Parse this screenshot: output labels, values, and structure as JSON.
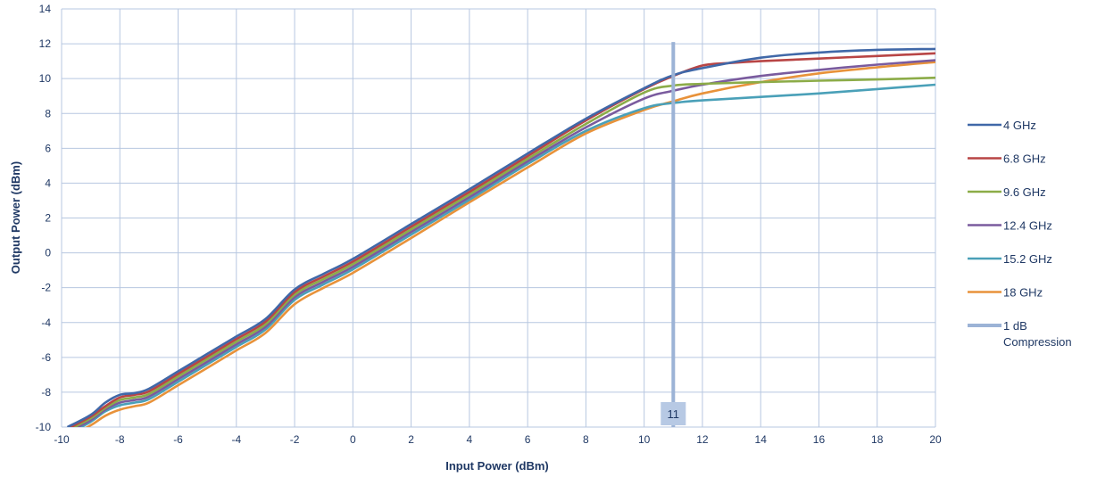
{
  "chart_data": {
    "type": "line",
    "xlabel": "Input Power (dBm)",
    "ylabel": "Output Power (dBm)",
    "xlim": [
      -10,
      20
    ],
    "ylim": [
      -10,
      14
    ],
    "xticks": [
      -10,
      -8,
      -6,
      -4,
      -2,
      0,
      2,
      4,
      6,
      8,
      10,
      12,
      14,
      16,
      18,
      20
    ],
    "yticks": [
      -10,
      -8,
      -6,
      -4,
      -2,
      0,
      2,
      4,
      6,
      8,
      10,
      12,
      14
    ],
    "grid": true,
    "legend_position": "right",
    "series": [
      {
        "name": "4 GHz",
        "color": "#4068a8",
        "x": [
          -9.8,
          -9,
          -8.5,
          -8,
          -7.5,
          -7,
          -6,
          -5,
          -4,
          -3,
          -2,
          -1,
          0,
          2,
          4,
          6,
          8,
          10,
          11,
          12,
          14,
          16,
          18,
          20
        ],
        "y": [
          -10,
          -9.3,
          -8.6,
          -8.15,
          -8.05,
          -7.8,
          -6.8,
          -5.8,
          -4.8,
          -3.8,
          -2.1,
          -1.2,
          -0.35,
          1.65,
          3.65,
          5.7,
          7.7,
          9.45,
          10.2,
          10.6,
          11.2,
          11.5,
          11.65,
          11.7
        ]
      },
      {
        "name": "6.8 GHz",
        "color": "#b84545",
        "x": [
          -9.8,
          -9,
          -8.5,
          -8,
          -7.5,
          -7,
          -6,
          -5,
          -4,
          -3,
          -2,
          -1,
          0,
          2,
          4,
          6,
          8,
          10,
          11,
          12,
          13,
          14,
          16,
          18,
          20
        ],
        "y": [
          -10.1,
          -9.4,
          -8.8,
          -8.3,
          -8.15,
          -7.95,
          -6.95,
          -5.95,
          -4.95,
          -3.95,
          -2.25,
          -1.35,
          -0.5,
          1.5,
          3.5,
          5.55,
          7.6,
          9.4,
          10.15,
          10.75,
          10.9,
          11,
          11.15,
          11.3,
          11.45
        ]
      },
      {
        "name": "9.6 GHz",
        "color": "#8cac48",
        "x": [
          -9.8,
          -9,
          -8.5,
          -8,
          -7.5,
          -7,
          -6,
          -5,
          -4,
          -3,
          -2,
          -1,
          0,
          2,
          4,
          6,
          8,
          10,
          11,
          12,
          14,
          16,
          18,
          20
        ],
        "y": [
          -10.2,
          -9.5,
          -8.9,
          -8.45,
          -8.3,
          -8.1,
          -7.1,
          -6.1,
          -5.1,
          -4.1,
          -2.4,
          -1.5,
          -0.65,
          1.35,
          3.35,
          5.4,
          7.4,
          9.2,
          9.6,
          9.7,
          9.8,
          9.88,
          9.95,
          10.05
        ]
      },
      {
        "name": "12.4 GHz",
        "color": "#7a5b9e",
        "x": [
          -9.8,
          -9,
          -8.5,
          -8,
          -7.5,
          -7,
          -6,
          -5,
          -4,
          -3,
          -2,
          -1,
          0,
          2,
          4,
          6,
          8,
          10,
          11,
          12,
          14,
          16,
          18,
          20
        ],
        "y": [
          -10.3,
          -9.6,
          -9.0,
          -8.6,
          -8.45,
          -8.25,
          -7.25,
          -6.25,
          -5.25,
          -4.25,
          -2.55,
          -1.65,
          -0.8,
          1.2,
          3.2,
          5.25,
          7.2,
          8.85,
          9.3,
          9.65,
          10.15,
          10.5,
          10.8,
          11.05
        ]
      },
      {
        "name": "15.2 GHz",
        "color": "#4aa0b8",
        "x": [
          -9.8,
          -9,
          -8.5,
          -8,
          -7.5,
          -7,
          -6,
          -5,
          -4,
          -3,
          -2,
          -1,
          0,
          2,
          4,
          6,
          8,
          10,
          11,
          12,
          14,
          16,
          18,
          20
        ],
        "y": [
          -10.4,
          -9.7,
          -9.1,
          -8.75,
          -8.6,
          -8.4,
          -7.4,
          -6.4,
          -5.4,
          -4.4,
          -2.7,
          -1.8,
          -0.95,
          1.05,
          3.05,
          5.1,
          7.0,
          8.3,
          8.6,
          8.75,
          8.95,
          9.15,
          9.4,
          9.65
        ]
      },
      {
        "name": "18 GHz",
        "color": "#e8923a",
        "x": [
          -9.8,
          -9,
          -8.5,
          -8,
          -7.5,
          -7,
          -6,
          -5,
          -4,
          -3,
          -2,
          -1,
          0,
          2,
          4,
          6,
          8,
          10,
          11,
          12,
          14,
          16,
          18,
          20
        ],
        "y": [
          -10.6,
          -9.9,
          -9.35,
          -9.0,
          -8.8,
          -8.6,
          -7.6,
          -6.6,
          -5.6,
          -4.6,
          -2.95,
          -2.0,
          -1.15,
          0.85,
          2.9,
          4.9,
          6.85,
          8.2,
          8.7,
          9.15,
          9.8,
          10.3,
          10.65,
          10.95
        ]
      }
    ],
    "compression_marker": {
      "name": "1 dB Compression",
      "color": "#9cb3d6",
      "x": 11,
      "y_top": 12.1,
      "label": "11"
    }
  }
}
